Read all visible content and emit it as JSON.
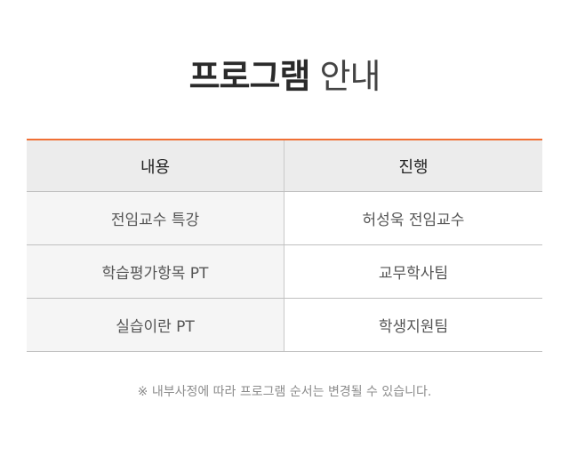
{
  "title": {
    "bold": "프로그램",
    "light": "안내"
  },
  "table": {
    "headers": [
      "내용",
      "진행"
    ],
    "rows": [
      [
        "전임교수 특강",
        "허성욱 전임교수"
      ],
      [
        "학습평가항목 PT",
        "교무학사팀"
      ],
      [
        "실습이란 PT",
        "학생지원팀"
      ]
    ]
  },
  "note": "※ 내부사정에 따라 프로그램 순서는 변경될 수 있습니다.",
  "colors": {
    "accent": "#f07035",
    "header_bg": "#ececec",
    "left_col_bg": "#f5f5f5"
  }
}
